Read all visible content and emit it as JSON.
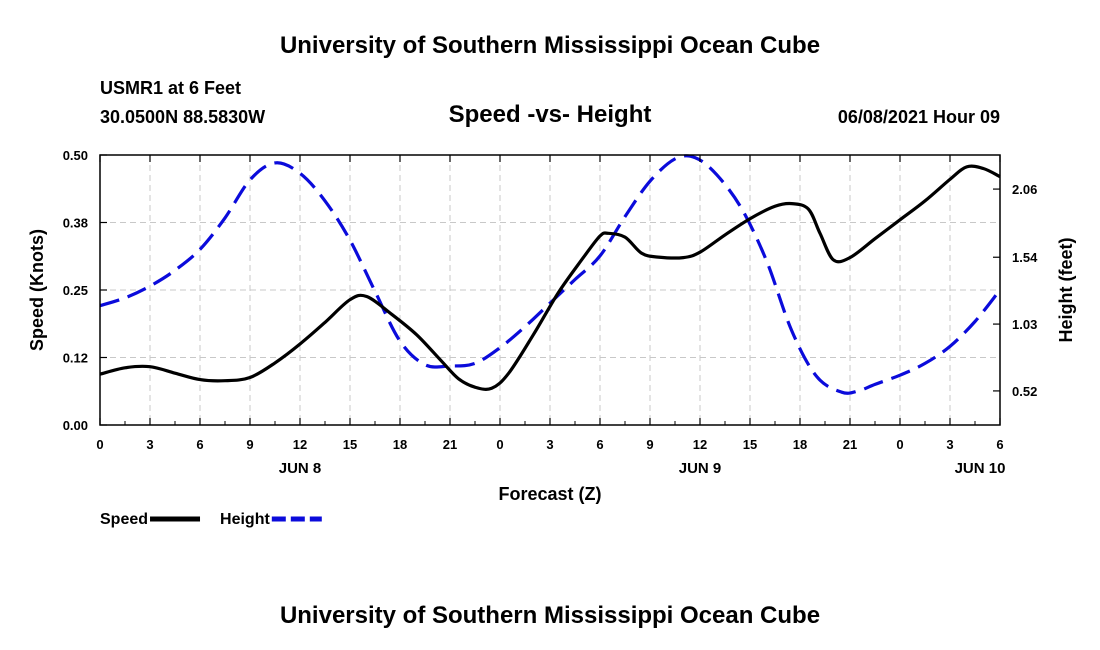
{
  "header": {
    "title": "University of Southern Mississippi Ocean Cube",
    "station": "USMR1 at 6 Feet",
    "coords": "30.0500N  88.5830W",
    "subtitle": "Speed -vs- Height",
    "timestamp": "06/08/2021 Hour 09"
  },
  "footer": {
    "title": "University of Southern Mississippi Ocean Cube"
  },
  "chart_data": {
    "type": "line",
    "title": "Speed -vs- Height",
    "xlabel": "Forecast (Z)",
    "ylabel": "Speed (Knots)",
    "y2label": "Height (feet)",
    "x_unit": "hours since 06/08 00Z",
    "xlim": [
      0,
      54
    ],
    "ylim": [
      0,
      0.5
    ],
    "y2lim": [
      0.26,
      2.32
    ],
    "grid": true,
    "legend_position": "bottom-left",
    "x_ticks": [
      0,
      3,
      6,
      9,
      12,
      15,
      18,
      21,
      24,
      27,
      30,
      33,
      36,
      39,
      42,
      45,
      48,
      51,
      54
    ],
    "x_tick_labels": [
      "0",
      "3",
      "6",
      "9",
      "12",
      "15",
      "18",
      "21",
      "0",
      "3",
      "6",
      "9",
      "12",
      "15",
      "18",
      "21",
      "0",
      "3",
      "6"
    ],
    "day_labels": [
      {
        "label": "JUN 8",
        "x": 12
      },
      {
        "label": "JUN 9",
        "x": 36
      },
      {
        "label": "JUN 10",
        "x": 52.8
      }
    ],
    "y_ticks": [
      0.0,
      0.125,
      0.25,
      0.375,
      0.5
    ],
    "y_tick_labels": [
      "0.00",
      "0.12",
      "0.25",
      "0.38",
      "0.50"
    ],
    "y2_ticks": [
      0.52,
      1.03,
      1.54,
      2.06
    ],
    "y2_tick_labels": [
      "0.52",
      "1.03",
      "1.54",
      "2.06"
    ],
    "series": [
      {
        "name": "Speed",
        "axis": "left",
        "color": "#000000",
        "dashed": false,
        "legend_label": "Speed",
        "x": [
          0,
          1.5,
          3,
          4.5,
          6,
          7.5,
          9,
          10.5,
          12,
          13.5,
          15,
          16,
          17.5,
          19,
          20.5,
          21.5,
          22.5,
          23.5,
          24.5,
          26,
          27.5,
          29,
          30,
          30.5,
          31.5,
          32.5,
          33.5,
          35,
          36,
          37.5,
          39,
          40.5,
          41.5,
          42.5,
          43.2,
          44,
          45,
          46.5,
          48,
          49.5,
          51,
          52,
          53,
          54
        ],
        "y": [
          0.094,
          0.106,
          0.108,
          0.096,
          0.084,
          0.082,
          0.088,
          0.115,
          0.15,
          0.19,
          0.232,
          0.238,
          0.205,
          0.167,
          0.118,
          0.086,
          0.07,
          0.068,
          0.095,
          0.167,
          0.245,
          0.31,
          0.35,
          0.355,
          0.348,
          0.318,
          0.311,
          0.31,
          0.32,
          0.352,
          0.382,
          0.405,
          0.41,
          0.4,
          0.355,
          0.306,
          0.31,
          0.345,
          0.38,
          0.415,
          0.455,
          0.478,
          0.475,
          0.46
        ]
      },
      {
        "name": "Height",
        "axis": "right",
        "color": "#0b0bdb",
        "dashed": true,
        "legend_label": "Height",
        "x": [
          0,
          1.5,
          3,
          4.5,
          6,
          7.5,
          9,
          10.5,
          12,
          13.5,
          15,
          16.5,
          18,
          19.5,
          21,
          22.5,
          24,
          25.5,
          27,
          28.5,
          30,
          31.5,
          33,
          34.5,
          35.7,
          37,
          38.5,
          40,
          41.5,
          43,
          44.5,
          45.5,
          46.5,
          48,
          49.5,
          51,
          52.5,
          54
        ],
        "y": [
          1.17,
          1.23,
          1.32,
          1.44,
          1.6,
          1.84,
          2.13,
          2.26,
          2.18,
          1.97,
          1.67,
          1.28,
          0.9,
          0.72,
          0.71,
          0.73,
          0.85,
          1.01,
          1.19,
          1.37,
          1.55,
          1.85,
          2.12,
          2.29,
          2.3,
          2.17,
          1.91,
          1.51,
          0.98,
          0.63,
          0.51,
          0.52,
          0.57,
          0.64,
          0.73,
          0.86,
          1.05,
          1.29
        ]
      }
    ]
  }
}
